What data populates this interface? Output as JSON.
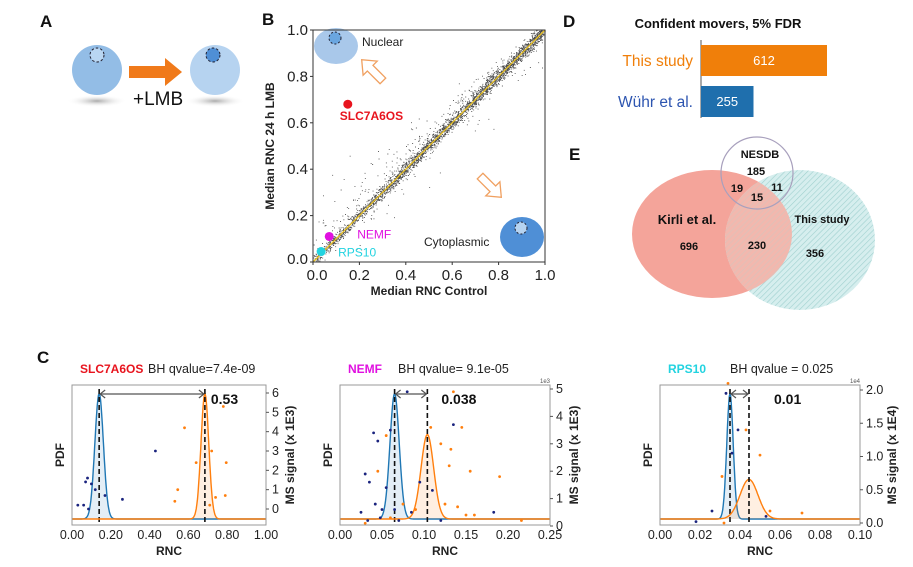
{
  "panels": {
    "a": "A",
    "b": "B",
    "c": "C",
    "d": "D",
    "e": "E"
  },
  "colors": {
    "control": "#1f77b4",
    "lmb": "#ff7f0e",
    "slc7a6os": "#e8141e",
    "nemf": "#e010e0",
    "rps10": "#22d3e0",
    "cell": "#a9c8ea",
    "cell_dark": "#5b96d8",
    "arrow": "#f07a1a",
    "kirli": "#f4a49a",
    "this_study_venn": "#b6dedd"
  },
  "panel_a": {
    "treatment_label": "+LMB",
    "icons": [
      "cell-nucleus-icon",
      "arrow-right-icon"
    ]
  },
  "chart_data": [
    {
      "id": "B",
      "type": "scatter",
      "xlabel": "Median RNC Control",
      "ylabel": "Median RNC 24 h LMB",
      "xlim": [
        0,
        1
      ],
      "ylim": [
        0,
        1
      ],
      "xticks": [
        "0.0",
        "0.2",
        "0.4",
        "0.6",
        "0.8",
        "1.0"
      ],
      "yticks": [
        "0.0",
        "0.2",
        "0.4",
        "0.6",
        "0.8",
        "1.0"
      ],
      "annotations": {
        "nuclear": "Nuclear",
        "cytoplasmic": "Cytoplasmic"
      },
      "diagonal": {
        "from": [
          0,
          0
        ],
        "to": [
          1,
          1
        ],
        "color": "#e8c020"
      },
      "highlighted": [
        {
          "name": "SLC7A6OS",
          "x": 0.15,
          "y": 0.68,
          "color": "#e8141e"
        },
        {
          "name": "NEMF",
          "x": 0.07,
          "y": 0.11,
          "color": "#e010e0"
        },
        {
          "name": "RPS10",
          "x": 0.035,
          "y": 0.045,
          "color": "#22d3e0"
        }
      ]
    },
    {
      "id": "D",
      "type": "bar",
      "title": "Confident movers, 5% FDR",
      "categories": [
        "This study",
        "Wühr et al."
      ],
      "values": [
        612,
        255
      ],
      "colors": [
        "#f07f0a",
        "#1f6fad"
      ],
      "label_colors": [
        "#f07f0a",
        "#2d55b0"
      ]
    },
    {
      "id": "E",
      "type": "venn",
      "sets": [
        "NESDB",
        "Kirli et al.",
        "This study"
      ],
      "regions": {
        "nesdb_only": 185,
        "nesdb_kirli": 19,
        "all_three": 15,
        "nesdb_this": 11,
        "kirli_only": 696,
        "kirli_this": 230,
        "this_only": 356
      }
    },
    {
      "id": "C1",
      "type": "line+scatter",
      "protein": "SLC7A6OS",
      "protein_color": "#e8141e",
      "qvalue_label": "BH qvalue=7.4e-09",
      "xlabel": "RNC",
      "ylabel": "PDF",
      "y2label": "MS signal (x 1E3)",
      "xlim": [
        0,
        1
      ],
      "xticks": [
        "0.00",
        "0.20",
        "0.40",
        "0.60",
        "0.80",
        "1.00"
      ],
      "y2lim": [
        0,
        6
      ],
      "y2ticks": [
        "0",
        "1",
        "2",
        "3",
        "4",
        "5",
        "6"
      ],
      "shift_label": "0.53",
      "fits": [
        {
          "mean": 0.14,
          "sd": 0.022,
          "relative_peak": 0.95,
          "color": "#1f77b4"
        },
        {
          "mean": 0.685,
          "sd": 0.02,
          "relative_peak": 0.95,
          "color": "#ff7f0e"
        }
      ],
      "points_control": [
        [
          0.03,
          0.2
        ],
        [
          0.06,
          0.2
        ],
        [
          0.07,
          1.4
        ],
        [
          0.08,
          1.6
        ],
        [
          0.1,
          1.3
        ],
        [
          0.12,
          1.0
        ],
        [
          0.085,
          0.0
        ],
        [
          0.17,
          0.7
        ],
        [
          0.26,
          0.5
        ],
        [
          0.43,
          3.0
        ]
      ],
      "points_lmb": [
        [
          0.53,
          0.4
        ],
        [
          0.545,
          1.0
        ],
        [
          0.58,
          4.2
        ],
        [
          0.64,
          2.4
        ],
        [
          0.72,
          3.0
        ],
        [
          0.71,
          0.2
        ],
        [
          0.74,
          0.6
        ],
        [
          0.79,
          0.7
        ],
        [
          0.795,
          2.4
        ],
        [
          0.78,
          5.3
        ]
      ]
    },
    {
      "id": "C2",
      "type": "line+scatter",
      "protein": "NEMF",
      "protein_color": "#e010e0",
      "qvalue_label": "BH qvalue= 9.1e-05",
      "xlabel": "RNC",
      "ylabel": "PDF",
      "y2label": "MS signal (x 1E3)",
      "y2_offset": "1e3",
      "xlim": [
        0,
        0.25
      ],
      "xticks": [
        "0.00",
        "0.05",
        "0.10",
        "0.15",
        "0.20",
        "0.25"
      ],
      "y2lim": [
        0,
        5
      ],
      "y2ticks": [
        "0",
        "1",
        "2",
        "3",
        "4",
        "5"
      ],
      "shift_label": "0.038",
      "fits": [
        {
          "mean": 0.065,
          "sd": 0.0055,
          "relative_peak": 0.95,
          "color": "#1f77b4"
        },
        {
          "mean": 0.104,
          "sd": 0.0075,
          "relative_peak": 0.64,
          "color": "#ff7f0e"
        }
      ],
      "points_control": [
        [
          0.025,
          0.5
        ],
        [
          0.03,
          1.9
        ],
        [
          0.033,
          0.2
        ],
        [
          0.035,
          1.6
        ],
        [
          0.04,
          3.4
        ],
        [
          0.042,
          0.8
        ],
        [
          0.045,
          3.1
        ],
        [
          0.048,
          0.3
        ],
        [
          0.05,
          0.6
        ],
        [
          0.055,
          1.4
        ],
        [
          0.06,
          3.5
        ],
        [
          0.065,
          0.6
        ],
        [
          0.07,
          0.2
        ],
        [
          0.08,
          4.9
        ],
        [
          0.085,
          0.5
        ],
        [
          0.095,
          1.6
        ],
        [
          0.11,
          1.3
        ],
        [
          0.12,
          0.2
        ],
        [
          0.135,
          3.7
        ],
        [
          0.183,
          0.5
        ]
      ],
      "points_lmb": [
        [
          0.03,
          0.1
        ],
        [
          0.045,
          2.0
        ],
        [
          0.055,
          3.3
        ],
        [
          0.06,
          0.3
        ],
        [
          0.075,
          0.8
        ],
        [
          0.09,
          0.6
        ],
        [
          0.108,
          3.6
        ],
        [
          0.12,
          3.0
        ],
        [
          0.125,
          0.8
        ],
        [
          0.13,
          2.2
        ],
        [
          0.132,
          2.8
        ],
        [
          0.135,
          4.9
        ],
        [
          0.14,
          0.7
        ],
        [
          0.145,
          3.6
        ],
        [
          0.15,
          0.4
        ],
        [
          0.155,
          2.0
        ],
        [
          0.16,
          0.4
        ],
        [
          0.19,
          1.8
        ],
        [
          0.216,
          0.2
        ]
      ]
    },
    {
      "id": "C3",
      "type": "line+scatter",
      "protein": "RPS10",
      "protein_color": "#22d3e0",
      "qvalue_label": "BH qvalue = 0.025",
      "xlabel": "RNC",
      "ylabel": "PDF",
      "y2label": "MS signal (x 1E4)",
      "y2_offset": "1e4",
      "xlim": [
        0,
        0.1
      ],
      "xticks": [
        "0.00",
        "0.02",
        "0.04",
        "0.06",
        "0.08",
        "0.10"
      ],
      "y2lim": [
        0,
        2.0
      ],
      "y2ticks": [
        "0.0",
        "0.5",
        "1.0",
        "1.5",
        "2.0"
      ],
      "shift_label": "0.01",
      "fits": [
        {
          "mean": 0.035,
          "sd": 0.0016,
          "relative_peak": 0.95,
          "color": "#1f77b4"
        },
        {
          "mean": 0.0445,
          "sd": 0.0045,
          "relative_peak": 0.3,
          "color": "#ff7f0e"
        }
      ],
      "points_control": [
        [
          0.018,
          0.02
        ],
        [
          0.026,
          0.18
        ],
        [
          0.033,
          1.95
        ],
        [
          0.039,
          1.4
        ],
        [
          0.036,
          1.05
        ],
        [
          0.053,
          0.1
        ]
      ],
      "points_lmb": [
        [
          0.031,
          0.7
        ],
        [
          0.034,
          2.1
        ],
        [
          0.043,
          1.4
        ],
        [
          0.05,
          1.02
        ],
        [
          0.055,
          0.18
        ],
        [
          0.071,
          0.15
        ],
        [
          0.032,
          0.0
        ]
      ]
    }
  ]
}
